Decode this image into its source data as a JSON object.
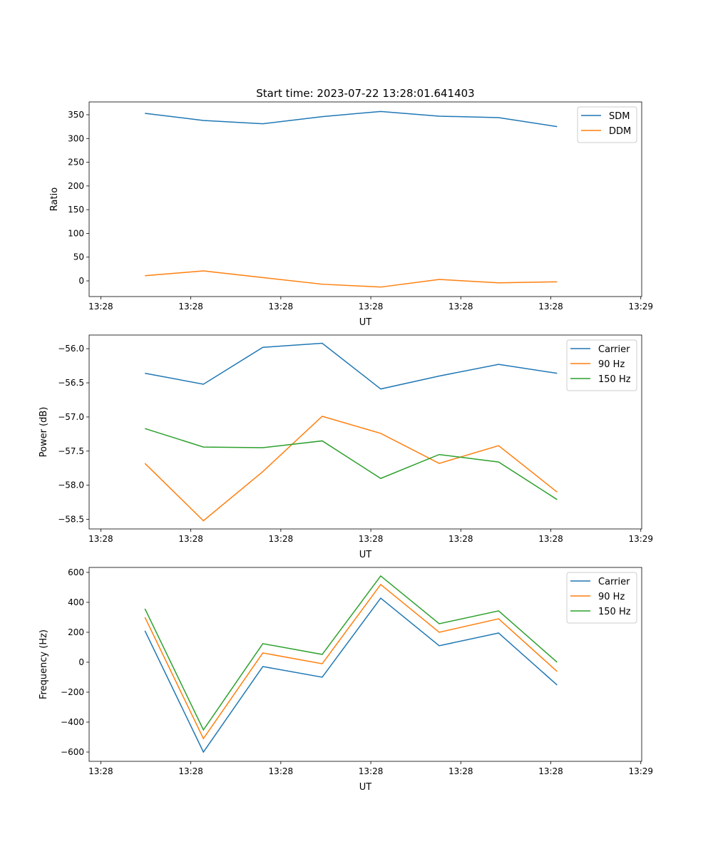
{
  "chart_data": [
    {
      "type": "line",
      "title": "Start time: 2023-07-22 13:28:01.641403",
      "xlabel": "UT",
      "ylabel": "Ratio",
      "x": [
        4.9,
        11.4,
        18.0,
        24.6,
        31.1,
        37.6,
        44.2,
        50.7
      ],
      "xlim": [
        -1.3,
        60.1
      ],
      "xticks": [
        0,
        10,
        20,
        30,
        40,
        50,
        60
      ],
      "xtick_labels": [
        "13:28",
        "13:28",
        "13:28",
        "13:28",
        "13:28",
        "13:28",
        "13:29"
      ],
      "ylim": [
        -33,
        377
      ],
      "yticks": [
        0,
        50,
        100,
        150,
        200,
        250,
        300,
        350
      ],
      "ytick_labels": [
        "0",
        "50",
        "100",
        "150",
        "200",
        "250",
        "300",
        "350"
      ],
      "legend": "top-right",
      "series": [
        {
          "name": "SDM",
          "color": "#1f77b4",
          "values": [
            353,
            338,
            331,
            346,
            357,
            347,
            344,
            325
          ]
        },
        {
          "name": "DDM",
          "color": "#ff7f0e",
          "values": [
            11,
            21,
            7,
            -7,
            -13,
            3,
            -4,
            -2
          ]
        }
      ]
    },
    {
      "type": "line",
      "title": "",
      "xlabel": "UT",
      "ylabel": "Power (dB)",
      "x": [
        4.9,
        11.4,
        18.0,
        24.6,
        31.1,
        37.6,
        44.2,
        50.7
      ],
      "xlim": [
        -1.3,
        60.1
      ],
      "xticks": [
        0,
        10,
        20,
        30,
        40,
        50,
        60
      ],
      "xtick_labels": [
        "13:28",
        "13:28",
        "13:28",
        "13:28",
        "13:28",
        "13:28",
        "13:29"
      ],
      "ylim": [
        -58.64,
        -55.8
      ],
      "yticks": [
        -58.5,
        -58.0,
        -57.5,
        -57.0,
        -56.5,
        -56.0
      ],
      "ytick_labels": [
        "−58.5",
        "−58.0",
        "−57.5",
        "−57.0",
        "−56.5",
        "−56.0"
      ],
      "legend": "top-right",
      "series": [
        {
          "name": "Carrier",
          "color": "#1f77b4",
          "values": [
            -56.36,
            -56.52,
            -55.98,
            -55.92,
            -56.59,
            -56.4,
            -56.23,
            -56.36
          ]
        },
        {
          "name": "90 Hz",
          "color": "#ff7f0e",
          "values": [
            -57.68,
            -58.52,
            -57.8,
            -56.99,
            -57.24,
            -57.68,
            -57.42,
            -58.1
          ]
        },
        {
          "name": "150 Hz",
          "color": "#2ca02c",
          "values": [
            -57.17,
            -57.44,
            -57.45,
            -57.35,
            -57.9,
            -57.55,
            -57.66,
            -58.21
          ]
        }
      ]
    },
    {
      "type": "line",
      "title": "",
      "xlabel": "UT",
      "ylabel": "Frequency (Hz)",
      "x": [
        4.9,
        11.4,
        18.0,
        24.6,
        31.1,
        37.6,
        44.2,
        50.7
      ],
      "xlim": [
        -1.3,
        60.1
      ],
      "xticks": [
        0,
        10,
        20,
        30,
        40,
        50,
        60
      ],
      "xtick_labels": [
        "13:28",
        "13:28",
        "13:28",
        "13:28",
        "13:28",
        "13:28",
        "13:29"
      ],
      "ylim": [
        -662,
        633
      ],
      "yticks": [
        -600,
        -400,
        -200,
        0,
        200,
        400,
        600
      ],
      "ytick_labels": [
        "−600",
        "−400",
        "−200",
        "0",
        "200",
        "400",
        "600"
      ],
      "legend": "top-right",
      "series": [
        {
          "name": "Carrier",
          "color": "#1f77b4",
          "values": [
            210,
            -600,
            -29,
            -100,
            428,
            110,
            195,
            -152
          ]
        },
        {
          "name": "90 Hz",
          "color": "#ff7f0e",
          "values": [
            300,
            -510,
            62,
            -10,
            519,
            200,
            290,
            -62
          ]
        },
        {
          "name": "150 Hz",
          "color": "#2ca02c",
          "values": [
            357,
            -452,
            124,
            52,
            576,
            257,
            343,
            0
          ]
        }
      ]
    }
  ]
}
